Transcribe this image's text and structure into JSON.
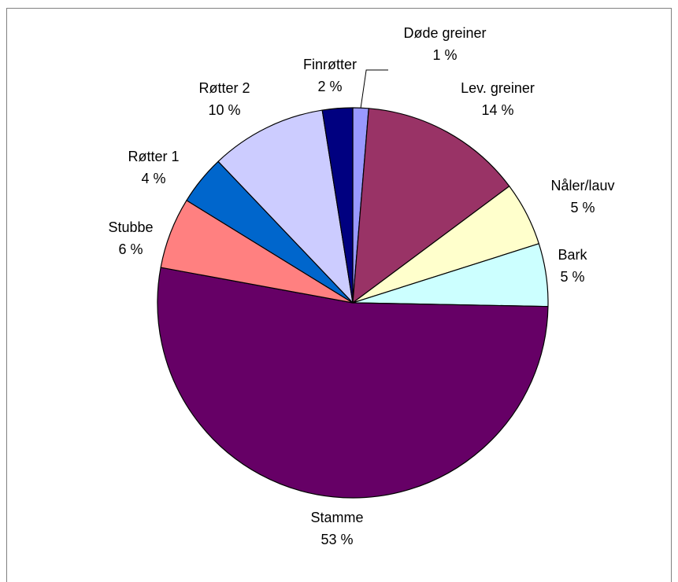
{
  "chart_data": {
    "type": "pie",
    "title": "",
    "slices": [
      {
        "label": "Døde greiner",
        "value": 1.3,
        "percent_label": "1 %",
        "color": "#9999ff"
      },
      {
        "label": "Lev. greiner",
        "value": 13.5,
        "percent_label": "14 %",
        "color": "#993366"
      },
      {
        "label": "Nåler/lauv",
        "value": 5.3,
        "percent_label": "5 %",
        "color": "#ffffcc"
      },
      {
        "label": "Bark",
        "value": 5.2,
        "percent_label": "5 %",
        "color": "#ccffff"
      },
      {
        "label": "Stamme",
        "value": 52.6,
        "percent_label": "53 %",
        "color": "#660066"
      },
      {
        "label": "Stubbe",
        "value": 5.9,
        "percent_label": "6 %",
        "color": "#ff8080"
      },
      {
        "label": "Røtter 1",
        "value": 4.1,
        "percent_label": "4 %",
        "color": "#0066cc"
      },
      {
        "label": "Røtter 2",
        "value": 9.6,
        "percent_label": "10 %",
        "color": "#ccccff"
      },
      {
        "label": "Finrøtter",
        "value": 2.5,
        "percent_label": "2 %",
        "color": "#000080"
      }
    ],
    "start_angle": "12 o'clock",
    "direction": "clockwise",
    "legend": "none",
    "labels": "outside"
  }
}
